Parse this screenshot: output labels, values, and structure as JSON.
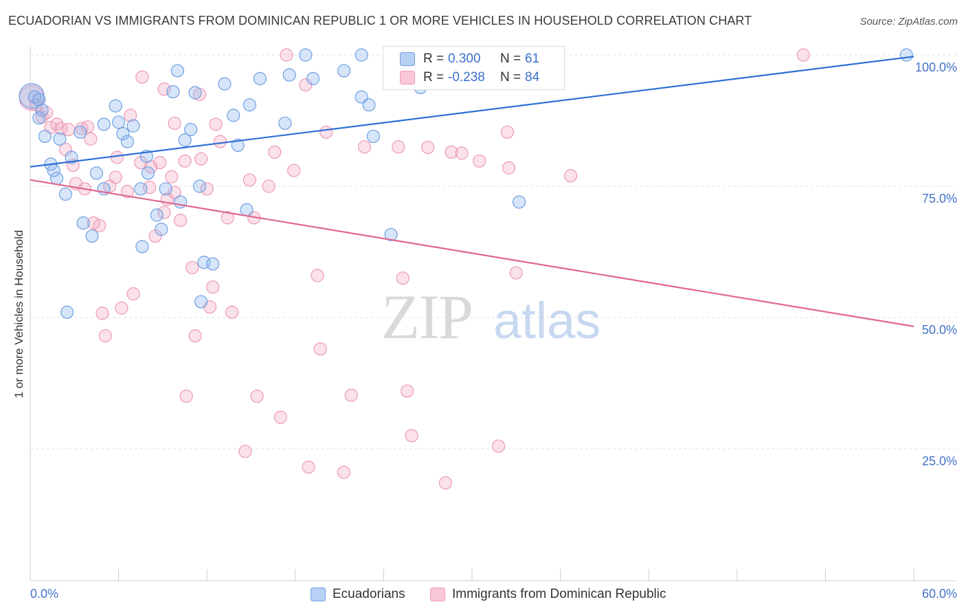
{
  "title": "ECUADORIAN VS IMMIGRANTS FROM DOMINICAN REPUBLIC 1 OR MORE VEHICLES IN HOUSEHOLD CORRELATION CHART",
  "source": "Source: ZipAtlas.com",
  "watermark": {
    "zip": "ZIP",
    "atlas": "atlas"
  },
  "legend": {
    "rows": [
      {
        "r_label": "R =",
        "r_value": "0.300",
        "n_label": "N =",
        "n_value": "61"
      },
      {
        "r_label": "R =",
        "r_value": "-0.238",
        "n_label": "N =",
        "n_value": "84"
      }
    ]
  },
  "bottom_legend": {
    "series1": "Ecuadorians",
    "series2": "Immigrants from Dominican Republic"
  },
  "colors": {
    "blue_fill": "rgba(138,180,238,0.35)",
    "blue_stroke": "#6f9fe0",
    "blue_line": "#2f6fd4",
    "pink_fill": "rgba(244,170,195,0.35)",
    "pink_stroke": "#ec9ab6",
    "pink_line": "#e0668f",
    "tick_text": "#4472c4"
  },
  "chart_data": {
    "type": "scatter",
    "title": "ECUADORIAN VS IMMIGRANTS FROM DOMINICAN REPUBLIC 1 OR MORE VEHICLES IN HOUSEHOLD CORRELATION CHART",
    "xlabel": "",
    "ylabel": "1 or more Vehicles in Household",
    "xlim": [
      0,
      60
    ],
    "ylim": [
      0,
      100
    ],
    "x_tick_labels": [
      "0.0%",
      "60.0%"
    ],
    "y_ticks": [
      25,
      50,
      75,
      100
    ],
    "y_tick_labels": [
      "25.0%",
      "50.0%",
      "75.0%",
      "100.0%"
    ],
    "grid": "horizontal dashed",
    "legend_position": "top-center",
    "series": [
      {
        "name": "Ecuadorians",
        "trend": {
          "x": [
            0,
            60
          ],
          "y": [
            78.7,
            99.7
          ]
        },
        "points": [
          {
            "x": 0.1,
            "y": 92.2,
            "big": true
          },
          {
            "x": 0.3,
            "y": 92.0
          },
          {
            "x": 0.6,
            "y": 91.5
          },
          {
            "x": 0.8,
            "y": 89.5
          },
          {
            "x": 0.6,
            "y": 88.0
          },
          {
            "x": 1.0,
            "y": 84.5
          },
          {
            "x": 1.4,
            "y": 79.2
          },
          {
            "x": 1.6,
            "y": 78.0
          },
          {
            "x": 2.0,
            "y": 84.0
          },
          {
            "x": 2.4,
            "y": 73.5
          },
          {
            "x": 2.8,
            "y": 80.5
          },
          {
            "x": 3.4,
            "y": 85.3
          },
          {
            "x": 3.6,
            "y": 68.0
          },
          {
            "x": 4.2,
            "y": 65.5
          },
          {
            "x": 4.5,
            "y": 77.5
          },
          {
            "x": 5.0,
            "y": 86.8
          },
          {
            "x": 5.0,
            "y": 74.5
          },
          {
            "x": 5.8,
            "y": 90.3
          },
          {
            "x": 6.0,
            "y": 87.2
          },
          {
            "x": 6.3,
            "y": 85.0
          },
          {
            "x": 6.6,
            "y": 83.5
          },
          {
            "x": 7.0,
            "y": 86.5
          },
          {
            "x": 7.5,
            "y": 74.5
          },
          {
            "x": 7.6,
            "y": 63.5
          },
          {
            "x": 7.9,
            "y": 80.7
          },
          {
            "x": 8.0,
            "y": 77.5
          },
          {
            "x": 8.6,
            "y": 69.5
          },
          {
            "x": 8.9,
            "y": 66.8
          },
          {
            "x": 9.2,
            "y": 74.5
          },
          {
            "x": 9.7,
            "y": 93.0
          },
          {
            "x": 10.0,
            "y": 97.0
          },
          {
            "x": 10.2,
            "y": 72.0
          },
          {
            "x": 10.5,
            "y": 83.8
          },
          {
            "x": 10.9,
            "y": 85.8
          },
          {
            "x": 11.2,
            "y": 92.8
          },
          {
            "x": 11.5,
            "y": 75.0
          },
          {
            "x": 11.6,
            "y": 53.0
          },
          {
            "x": 11.8,
            "y": 60.5
          },
          {
            "x": 12.4,
            "y": 60.2
          },
          {
            "x": 13.2,
            "y": 94.5
          },
          {
            "x": 13.8,
            "y": 88.5
          },
          {
            "x": 14.1,
            "y": 82.8
          },
          {
            "x": 14.7,
            "y": 70.5
          },
          {
            "x": 14.9,
            "y": 90.5
          },
          {
            "x": 15.6,
            "y": 95.5
          },
          {
            "x": 17.3,
            "y": 87.0
          },
          {
            "x": 17.6,
            "y": 96.2
          },
          {
            "x": 18.7,
            "y": 100.0
          },
          {
            "x": 19.2,
            "y": 95.5
          },
          {
            "x": 21.3,
            "y": 97.0
          },
          {
            "x": 22.5,
            "y": 100.0
          },
          {
            "x": 22.5,
            "y": 92.0
          },
          {
            "x": 23.0,
            "y": 90.5
          },
          {
            "x": 23.3,
            "y": 84.5
          },
          {
            "x": 24.5,
            "y": 65.8
          },
          {
            "x": 25.5,
            "y": 98.0
          },
          {
            "x": 26.5,
            "y": 93.8
          },
          {
            "x": 33.2,
            "y": 72.0
          },
          {
            "x": 59.5,
            "y": 100.0
          },
          {
            "x": 2.5,
            "y": 51.0
          },
          {
            "x": 1.8,
            "y": 76.5
          }
        ]
      },
      {
        "name": "Immigrants from Dominican Republic",
        "trend": {
          "x": [
            0,
            60
          ],
          "y": [
            76.2,
            48.3
          ]
        },
        "points": [
          {
            "x": 0.1,
            "y": 91.8,
            "big": true
          },
          {
            "x": 0.4,
            "y": 90.5
          },
          {
            "x": 0.8,
            "y": 88.2
          },
          {
            "x": 1.1,
            "y": 89.0
          },
          {
            "x": 1.4,
            "y": 86.2
          },
          {
            "x": 1.8,
            "y": 86.8
          },
          {
            "x": 2.1,
            "y": 86.0
          },
          {
            "x": 2.4,
            "y": 82.0
          },
          {
            "x": 2.6,
            "y": 85.8
          },
          {
            "x": 2.9,
            "y": 79.0
          },
          {
            "x": 3.1,
            "y": 75.5
          },
          {
            "x": 3.5,
            "y": 86.0
          },
          {
            "x": 3.7,
            "y": 74.5
          },
          {
            "x": 3.9,
            "y": 86.3
          },
          {
            "x": 4.1,
            "y": 84.0
          },
          {
            "x": 4.3,
            "y": 68.0
          },
          {
            "x": 4.7,
            "y": 67.5
          },
          {
            "x": 4.9,
            "y": 50.8
          },
          {
            "x": 5.1,
            "y": 46.5
          },
          {
            "x": 5.4,
            "y": 75.0
          },
          {
            "x": 5.8,
            "y": 76.7
          },
          {
            "x": 5.9,
            "y": 80.5
          },
          {
            "x": 6.2,
            "y": 51.8
          },
          {
            "x": 6.6,
            "y": 74.0
          },
          {
            "x": 6.8,
            "y": 88.5
          },
          {
            "x": 7.0,
            "y": 54.5
          },
          {
            "x": 7.5,
            "y": 79.5
          },
          {
            "x": 7.6,
            "y": 95.8
          },
          {
            "x": 8.1,
            "y": 74.8
          },
          {
            "x": 8.2,
            "y": 78.7
          },
          {
            "x": 8.5,
            "y": 65.5
          },
          {
            "x": 8.8,
            "y": 79.5
          },
          {
            "x": 9.1,
            "y": 70.0
          },
          {
            "x": 9.1,
            "y": 93.5
          },
          {
            "x": 9.6,
            "y": 76.8
          },
          {
            "x": 9.8,
            "y": 87.0
          },
          {
            "x": 9.8,
            "y": 73.8
          },
          {
            "x": 10.2,
            "y": 68.5
          },
          {
            "x": 10.5,
            "y": 79.8
          },
          {
            "x": 10.6,
            "y": 35.0
          },
          {
            "x": 11.0,
            "y": 59.5
          },
          {
            "x": 11.2,
            "y": 46.5
          },
          {
            "x": 11.5,
            "y": 92.5
          },
          {
            "x": 11.6,
            "y": 80.2
          },
          {
            "x": 12.0,
            "y": 74.5
          },
          {
            "x": 12.2,
            "y": 52.0
          },
          {
            "x": 12.4,
            "y": 55.8
          },
          {
            "x": 12.6,
            "y": 86.8
          },
          {
            "x": 12.9,
            "y": 83.5
          },
          {
            "x": 13.4,
            "y": 69.0
          },
          {
            "x": 13.7,
            "y": 51.0
          },
          {
            "x": 14.6,
            "y": 24.5
          },
          {
            "x": 14.9,
            "y": 76.2
          },
          {
            "x": 15.2,
            "y": 69.0
          },
          {
            "x": 15.4,
            "y": 35.0
          },
          {
            "x": 16.2,
            "y": 75.0
          },
          {
            "x": 16.6,
            "y": 81.5
          },
          {
            "x": 17.0,
            "y": 31.0
          },
          {
            "x": 17.4,
            "y": 100.0
          },
          {
            "x": 17.9,
            "y": 78.0
          },
          {
            "x": 18.7,
            "y": 94.3
          },
          {
            "x": 18.9,
            "y": 21.5
          },
          {
            "x": 19.5,
            "y": 58.0
          },
          {
            "x": 20.1,
            "y": 85.3
          },
          {
            "x": 21.3,
            "y": 20.5
          },
          {
            "x": 21.8,
            "y": 35.2
          },
          {
            "x": 22.7,
            "y": 82.5
          },
          {
            "x": 25.0,
            "y": 82.5
          },
          {
            "x": 25.3,
            "y": 57.5
          },
          {
            "x": 25.6,
            "y": 36.0
          },
          {
            "x": 25.9,
            "y": 27.5
          },
          {
            "x": 27.0,
            "y": 82.4
          },
          {
            "x": 28.2,
            "y": 18.5
          },
          {
            "x": 28.6,
            "y": 81.5
          },
          {
            "x": 29.3,
            "y": 81.3
          },
          {
            "x": 30.5,
            "y": 79.8
          },
          {
            "x": 31.8,
            "y": 25.5
          },
          {
            "x": 32.4,
            "y": 85.3
          },
          {
            "x": 32.5,
            "y": 78.5
          },
          {
            "x": 33.0,
            "y": 58.5
          },
          {
            "x": 36.7,
            "y": 77.0
          },
          {
            "x": 52.5,
            "y": 100.0
          },
          {
            "x": 19.7,
            "y": 44.0
          },
          {
            "x": 9.3,
            "y": 72.5
          }
        ]
      }
    ]
  }
}
